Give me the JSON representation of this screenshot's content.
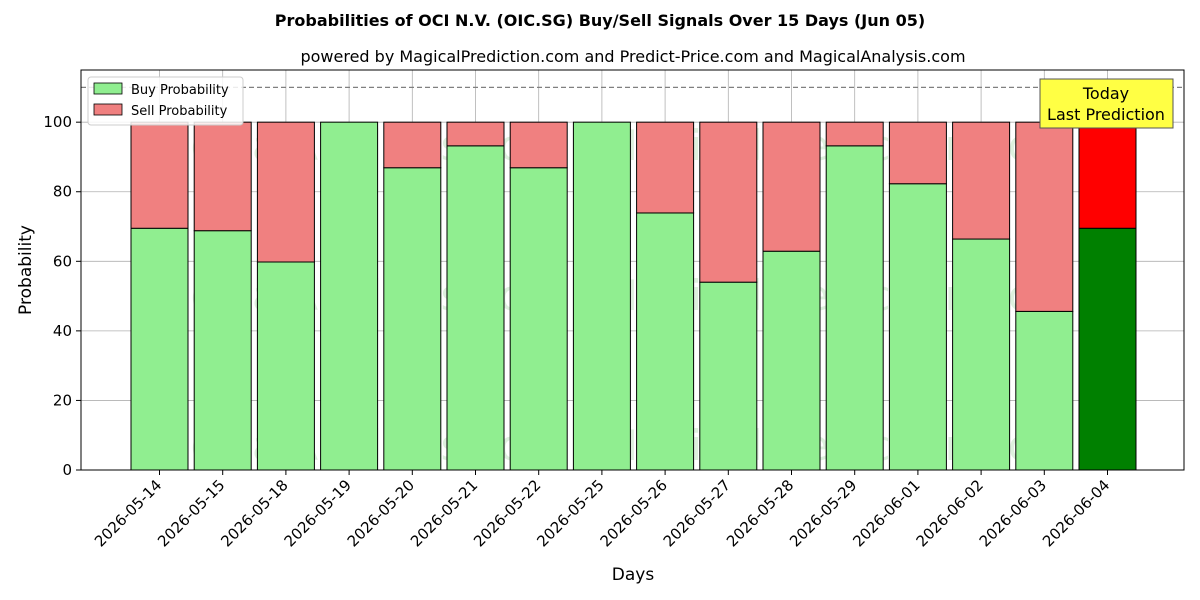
{
  "chart_data": {
    "type": "bar",
    "stacked": true,
    "title": "Probabilities of OCI N.V. (OIC.SG) Buy/Sell Signals Over 15 Days (Jun 05)",
    "subtitle": "powered by MagicalPrediction.com and Predict-Price.com and MagicalAnalysis.com",
    "xlabel": "Days",
    "ylabel": "Probability",
    "ylim": [
      0,
      115
    ],
    "yticks": [
      0,
      20,
      40,
      60,
      80,
      100
    ],
    "grid": true,
    "legend_position": "top-left",
    "reference_line": 110,
    "categories": [
      "2026-05-14",
      "2026-05-15",
      "2026-05-18",
      "2026-05-19",
      "2026-05-20",
      "2026-05-21",
      "2026-05-22",
      "2026-05-25",
      "2026-05-26",
      "2026-05-27",
      "2026-05-28",
      "2026-05-29",
      "2026-06-01",
      "2026-06-02",
      "2026-06-03",
      "2026-06-04"
    ],
    "series": [
      {
        "name": "Buy Probability",
        "color": "#90ee90",
        "highlight_color": "#008000",
        "values": [
          69.5,
          68.8,
          59.8,
          100,
          86.9,
          93.2,
          86.9,
          100,
          73.9,
          54.0,
          62.9,
          93.2,
          82.3,
          66.4,
          45.6,
          69.5
        ]
      },
      {
        "name": "Sell Probability",
        "color": "#f08080",
        "highlight_color": "#ff0000",
        "values": [
          30.5,
          31.2,
          40.2,
          0,
          13.1,
          6.8,
          13.1,
          0,
          26.1,
          46.0,
          37.1,
          6.8,
          17.7,
          33.6,
          54.4,
          30.5
        ]
      }
    ],
    "annotation": {
      "lines": [
        "Today",
        "Last Prediction"
      ],
      "color": "#ffff44"
    },
    "watermarks": [
      "MagicalAnalysis.com",
      "MagicalPrediction.com"
    ]
  }
}
